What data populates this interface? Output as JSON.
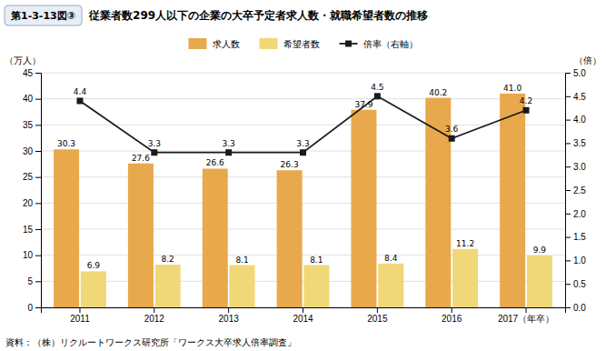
{
  "chart_data": {
    "type": "bar",
    "title": "従業者数299人以下の企業の大卒予定者求人数・就職希望者数の推移",
    "annotations": [
      "第1-3-13図③",
      "資料：（株）リクルートワークス研究所「ワークス大卒求人倍率調査」"
    ],
    "ylabel": "（万人）",
    "y2label": "（倍）",
    "categories": [
      "2011",
      "2012",
      "2013",
      "2014",
      "2015",
      "2016",
      "2017（年卒）"
    ],
    "series": [
      {
        "name": "求人数",
        "color": "#E8A84C",
        "values": [
          30.3,
          27.6,
          26.6,
          26.3,
          37.9,
          40.2,
          41.0
        ],
        "value_labels": [
          "30.3",
          "27.6",
          "26.6",
          "26.3",
          "37.9",
          "40.2",
          "41.0"
        ]
      },
      {
        "name": "希望者数",
        "color": "#F0D878",
        "values": [
          6.9,
          8.2,
          8.1,
          8.1,
          8.4,
          11.2,
          9.9
        ]
      },
      {
        "name": "倍率（右軸）",
        "type": "line",
        "axis": "y2",
        "color": "#1a1a1a",
        "marker": "square",
        "values": [
          4.4,
          3.3,
          3.3,
          3.3,
          4.5,
          3.6,
          4.2
        ]
      }
    ],
    "ylim": [
      0,
      45
    ],
    "yticks": [
      0,
      5,
      10,
      15,
      20,
      25,
      30,
      35,
      40,
      45
    ],
    "y2lim": [
      0,
      5
    ],
    "y2ticks": [
      {
        "value": 0,
        "label": "0.0"
      },
      0.5,
      {
        "value": 1,
        "label": "1.0"
      },
      1.5,
      {
        "value": 2,
        "label": "2.0"
      },
      2.5,
      {
        "value": 3,
        "label": "3.0"
      },
      3.5,
      {
        "value": 4,
        "label": "4.0"
      },
      4.5,
      {
        "value": 5,
        "label": "5.0"
      }
    ],
    "grid": true,
    "legend": "top",
    "data_labels": true
  }
}
